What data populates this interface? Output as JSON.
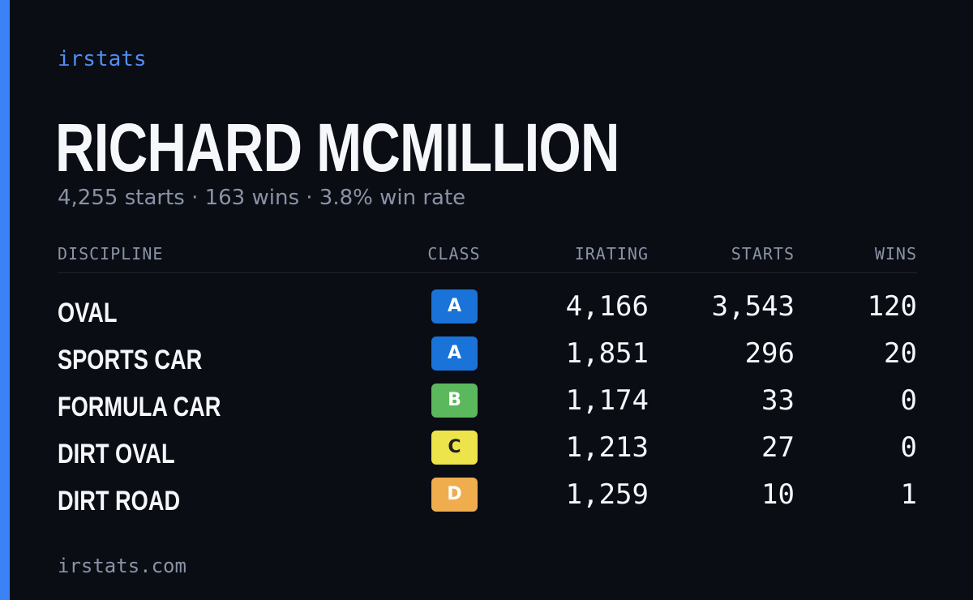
{
  "brand": "irstats",
  "driver_name": "RICHARD MCMILLION",
  "summary": "4,255 starts · 163 wins · 3.8% win rate",
  "table": {
    "headers": {
      "discipline": "DISCIPLINE",
      "class": "CLASS",
      "irating": "IRATING",
      "starts": "STARTS",
      "wins": "WINS"
    },
    "rows": [
      {
        "discipline": "OVAL",
        "class": "A",
        "class_color": "#1a73d9",
        "class_text_color": "#ffffff",
        "irating": "4,166",
        "starts": "3,543",
        "wins": "120"
      },
      {
        "discipline": "SPORTS CAR",
        "class": "A",
        "class_color": "#1a73d9",
        "class_text_color": "#ffffff",
        "irating": "1,851",
        "starts": "296",
        "wins": "20"
      },
      {
        "discipline": "FORMULA CAR",
        "class": "B",
        "class_color": "#5cb85c",
        "class_text_color": "#ffffff",
        "irating": "1,174",
        "starts": "33",
        "wins": "0"
      },
      {
        "discipline": "DIRT OVAL",
        "class": "C",
        "class_color": "#ede34a",
        "class_text_color": "#1f1f1f",
        "irating": "1,213",
        "starts": "27",
        "wins": "0"
      },
      {
        "discipline": "DIRT ROAD",
        "class": "D",
        "class_color": "#f0ad4e",
        "class_text_color": "#ffffff",
        "irating": "1,259",
        "starts": "10",
        "wins": "1"
      }
    ]
  },
  "footer": "irstats.com",
  "colors": {
    "accent": "#3b82f6",
    "background": "#0a0d14",
    "muted_text": "#8a93a5",
    "primary_text": "#f5f7fb"
  }
}
